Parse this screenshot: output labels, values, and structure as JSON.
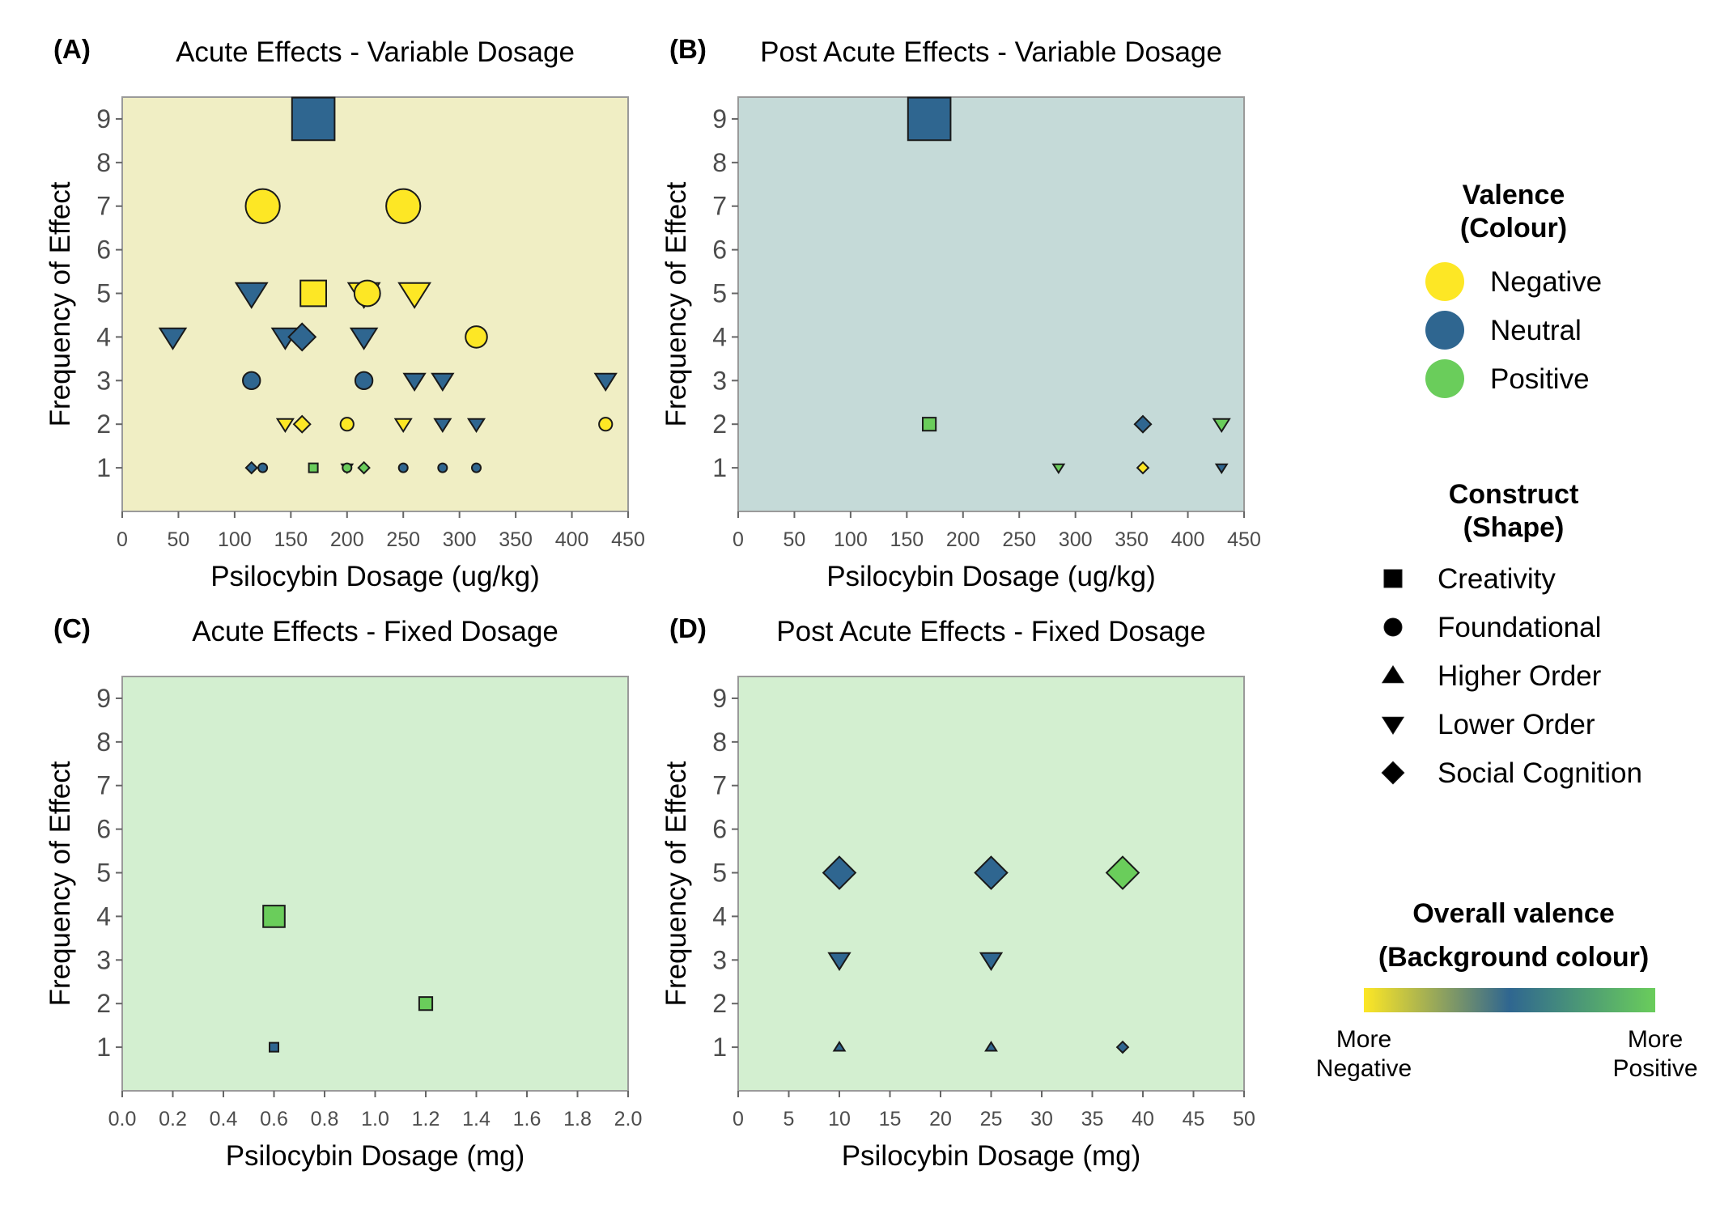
{
  "colors": {
    "negative": "#FDE725",
    "neutral": "#2F6690",
    "positive": "#6ACD5B",
    "panel_bg": {
      "A": "#F0EEC4",
      "B": "#C5DAD8",
      "C": "#D3EFD0",
      "D": "#D3EFD0"
    },
    "frame": "#9a9a9a",
    "marker_stroke": "#1a1a1a"
  },
  "chart_data": [
    {
      "id": "A",
      "tag": "(A)",
      "type": "scatter",
      "title": "Acute Effects - Variable Dosage",
      "xlabel": "Psilocybin Dosage (ug/kg)",
      "ylabel": "Frequency of Effect",
      "xlim": [
        0,
        450
      ],
      "ylim": [
        0,
        9.5
      ],
      "xticks": [
        0,
        50,
        100,
        150,
        200,
        250,
        300,
        350,
        400,
        450
      ],
      "xtick_labels": [
        "0",
        "50",
        "100",
        "150",
        "200",
        "250",
        "300",
        "350",
        "400",
        "450"
      ],
      "yticks": [
        1,
        2,
        3,
        4,
        5,
        6,
        7,
        8,
        9
      ],
      "ytick_labels": [
        "1",
        "2",
        "3",
        "4",
        "5",
        "6",
        "7",
        "8",
        "9"
      ],
      "background": "negative",
      "points": [
        {
          "x": 170,
          "y": 9,
          "shape": "square",
          "valence": "neutral"
        },
        {
          "x": 125,
          "y": 7,
          "shape": "circle",
          "valence": "negative"
        },
        {
          "x": 250,
          "y": 7,
          "shape": "circle",
          "valence": "negative"
        },
        {
          "x": 115,
          "y": 5,
          "shape": "triangle-down",
          "valence": "neutral"
        },
        {
          "x": 170,
          "y": 5,
          "shape": "square",
          "valence": "negative"
        },
        {
          "x": 215,
          "y": 5,
          "shape": "triangle-down",
          "valence": "negative"
        },
        {
          "x": 218,
          "y": 5,
          "shape": "circle",
          "valence": "negative"
        },
        {
          "x": 260,
          "y": 5,
          "shape": "triangle-down",
          "valence": "negative"
        },
        {
          "x": 45,
          "y": 4,
          "shape": "triangle-down",
          "valence": "neutral"
        },
        {
          "x": 145,
          "y": 4,
          "shape": "triangle-down",
          "valence": "neutral"
        },
        {
          "x": 160,
          "y": 4,
          "shape": "diamond",
          "valence": "neutral"
        },
        {
          "x": 215,
          "y": 4,
          "shape": "triangle-down",
          "valence": "neutral"
        },
        {
          "x": 315,
          "y": 4,
          "shape": "circle",
          "valence": "negative"
        },
        {
          "x": 115,
          "y": 3,
          "shape": "circle",
          "valence": "neutral"
        },
        {
          "x": 215,
          "y": 3,
          "shape": "circle",
          "valence": "neutral"
        },
        {
          "x": 260,
          "y": 3,
          "shape": "triangle-down",
          "valence": "neutral"
        },
        {
          "x": 285,
          "y": 3,
          "shape": "triangle-down",
          "valence": "neutral"
        },
        {
          "x": 430,
          "y": 3,
          "shape": "triangle-down",
          "valence": "neutral"
        },
        {
          "x": 145,
          "y": 2,
          "shape": "triangle-down",
          "valence": "negative"
        },
        {
          "x": 160,
          "y": 2,
          "shape": "diamond",
          "valence": "negative"
        },
        {
          "x": 200,
          "y": 2,
          "shape": "circle",
          "valence": "negative"
        },
        {
          "x": 250,
          "y": 2,
          "shape": "triangle-down",
          "valence": "negative"
        },
        {
          "x": 285,
          "y": 2,
          "shape": "triangle-down",
          "valence": "neutral"
        },
        {
          "x": 315,
          "y": 2,
          "shape": "triangle-down",
          "valence": "neutral"
        },
        {
          "x": 430,
          "y": 2,
          "shape": "circle",
          "valence": "negative"
        },
        {
          "x": 115,
          "y": 1,
          "shape": "diamond",
          "valence": "neutral"
        },
        {
          "x": 125,
          "y": 1,
          "shape": "circle",
          "valence": "neutral"
        },
        {
          "x": 170,
          "y": 1,
          "shape": "square",
          "valence": "positive"
        },
        {
          "x": 200,
          "y": 1,
          "shape": "triangle-down",
          "valence": "neutral"
        },
        {
          "x": 200,
          "y": 1,
          "shape": "circle",
          "valence": "positive"
        },
        {
          "x": 215,
          "y": 1,
          "shape": "diamond",
          "valence": "positive"
        },
        {
          "x": 250,
          "y": 1,
          "shape": "circle",
          "valence": "neutral"
        },
        {
          "x": 285,
          "y": 1,
          "shape": "circle",
          "valence": "neutral"
        },
        {
          "x": 315,
          "y": 1,
          "shape": "circle",
          "valence": "neutral"
        }
      ]
    },
    {
      "id": "B",
      "tag": "(B)",
      "type": "scatter",
      "title": "Post Acute Effects - Variable Dosage",
      "xlabel": "Psilocybin Dosage (ug/kg)",
      "ylabel": "Frequency of Effect",
      "xlim": [
        0,
        450
      ],
      "ylim": [
        0,
        9.5
      ],
      "xticks": [
        0,
        50,
        100,
        150,
        200,
        250,
        300,
        350,
        400,
        450
      ],
      "xtick_labels": [
        "0",
        "50",
        "100",
        "150",
        "200",
        "250",
        "300",
        "350",
        "400",
        "450"
      ],
      "yticks": [
        1,
        2,
        3,
        4,
        5,
        6,
        7,
        8,
        9
      ],
      "ytick_labels": [
        "1",
        "2",
        "3",
        "4",
        "5",
        "6",
        "7",
        "8",
        "9"
      ],
      "background": "neutral-light",
      "points": [
        {
          "x": 170,
          "y": 9,
          "shape": "square",
          "valence": "neutral"
        },
        {
          "x": 170,
          "y": 2,
          "shape": "square",
          "valence": "positive"
        },
        {
          "x": 360,
          "y": 2,
          "shape": "diamond",
          "valence": "neutral"
        },
        {
          "x": 430,
          "y": 2,
          "shape": "triangle-down",
          "valence": "positive"
        },
        {
          "x": 285,
          "y": 1,
          "shape": "triangle-down",
          "valence": "positive"
        },
        {
          "x": 360,
          "y": 1,
          "shape": "diamond",
          "valence": "negative"
        },
        {
          "x": 430,
          "y": 1,
          "shape": "triangle-down",
          "valence": "neutral"
        }
      ]
    },
    {
      "id": "C",
      "tag": "(C)",
      "type": "scatter",
      "title": "Acute Effects - Fixed Dosage",
      "xlabel": "Psilocybin Dosage (mg)",
      "ylabel": "Frequency of Effect",
      "xlim": [
        0,
        2.0
      ],
      "ylim": [
        0,
        9.5
      ],
      "xticks": [
        0,
        0.2,
        0.4,
        0.6,
        0.8,
        1.0,
        1.2,
        1.4,
        1.6,
        1.8,
        2.0
      ],
      "xtick_labels": [
        "0.0",
        "0.2",
        "0.4",
        "0.6",
        "0.8",
        "1.0",
        "1.2",
        "1.4",
        "1.6",
        "1.8",
        "2.0"
      ],
      "yticks": [
        1,
        2,
        3,
        4,
        5,
        6,
        7,
        8,
        9
      ],
      "ytick_labels": [
        "1",
        "2",
        "3",
        "4",
        "5",
        "6",
        "7",
        "8",
        "9"
      ],
      "background": "positive-light",
      "points": [
        {
          "x": 0.6,
          "y": 4,
          "shape": "square",
          "valence": "positive"
        },
        {
          "x": 1.2,
          "y": 2,
          "shape": "square",
          "valence": "positive"
        },
        {
          "x": 0.6,
          "y": 1,
          "shape": "square",
          "valence": "neutral"
        }
      ]
    },
    {
      "id": "D",
      "tag": "(D)",
      "type": "scatter",
      "title": "Post Acute Effects - Fixed Dosage",
      "xlabel": "Psilocybin Dosage (mg)",
      "ylabel": "Frequency of Effect",
      "xlim": [
        0,
        50
      ],
      "ylim": [
        0,
        9.5
      ],
      "xticks": [
        0,
        5,
        10,
        15,
        20,
        25,
        30,
        35,
        40,
        45,
        50
      ],
      "xtick_labels": [
        "0",
        "5",
        "10",
        "15",
        "20",
        "25",
        "30",
        "35",
        "40",
        "45",
        "50"
      ],
      "yticks": [
        1,
        2,
        3,
        4,
        5,
        6,
        7,
        8,
        9
      ],
      "ytick_labels": [
        "1",
        "2",
        "3",
        "4",
        "5",
        "6",
        "7",
        "8",
        "9"
      ],
      "background": "positive-light",
      "points": [
        {
          "x": 10,
          "y": 5,
          "shape": "diamond",
          "valence": "neutral"
        },
        {
          "x": 25,
          "y": 5,
          "shape": "diamond",
          "valence": "neutral"
        },
        {
          "x": 38,
          "y": 5,
          "shape": "diamond",
          "valence": "positive"
        },
        {
          "x": 10,
          "y": 3,
          "shape": "triangle-down",
          "valence": "neutral"
        },
        {
          "x": 25,
          "y": 3,
          "shape": "triangle-down",
          "valence": "neutral"
        },
        {
          "x": 10,
          "y": 1,
          "shape": "triangle-up",
          "valence": "neutral"
        },
        {
          "x": 25,
          "y": 1,
          "shape": "triangle-up",
          "valence": "neutral"
        },
        {
          "x": 38,
          "y": 1,
          "shape": "diamond",
          "valence": "neutral"
        }
      ]
    }
  ],
  "legend": {
    "valence": {
      "heading_line1": "Valence",
      "heading_line2": "(Colour)",
      "items": [
        {
          "label": "Negative",
          "valence": "negative"
        },
        {
          "label": "Neutral",
          "valence": "neutral"
        },
        {
          "label": "Positive",
          "valence": "positive"
        }
      ]
    },
    "construct": {
      "heading_line1": "Construct",
      "heading_line2": "(Shape)",
      "items": [
        {
          "label": "Creativity",
          "shape": "square"
        },
        {
          "label": "Foundational",
          "shape": "circle"
        },
        {
          "label": "Higher Order",
          "shape": "triangle-up"
        },
        {
          "label": "Lower Order",
          "shape": "triangle-down"
        },
        {
          "label": "Social Cognition",
          "shape": "diamond"
        }
      ]
    },
    "overall": {
      "heading_line1": "Overall valence",
      "heading_line2": "(Background colour)",
      "left_line1": "More",
      "left_line2": "Negative",
      "right_line1": "More",
      "right_line2": "Positive"
    }
  }
}
